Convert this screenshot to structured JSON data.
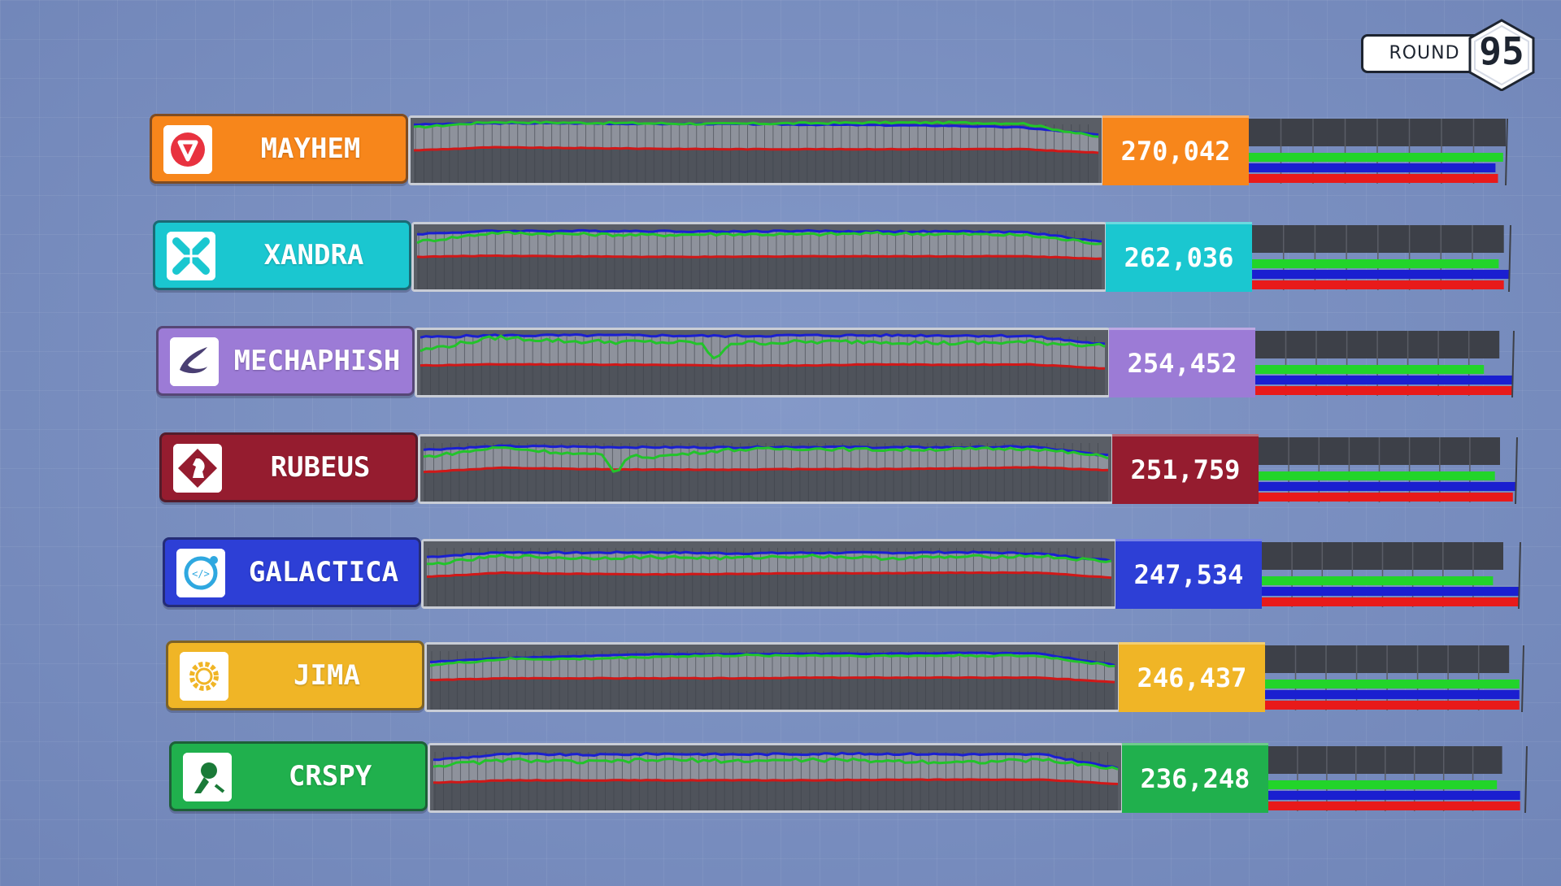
{
  "round": {
    "label": "ROUND",
    "number": "95"
  },
  "chart_data": [
    {
      "type": "line",
      "series": [
        {
          "name": "",
          "color": "#1a1fd0",
          "values": [
            0.93,
            0.95,
            0.95,
            0.94,
            0.94,
            0.93,
            0.92,
            0.91,
            0.88,
            0.76
          ]
        },
        {
          "name": "",
          "color": "#22c42a",
          "values": [
            0.88,
            0.97,
            0.96,
            0.95,
            0.94,
            0.95,
            0.96,
            0.96,
            0.95,
            0.72
          ]
        },
        {
          "name": "",
          "color": "#d01818",
          "values": [
            0.5,
            0.55,
            0.54,
            0.53,
            0.52,
            0.52,
            0.52,
            0.52,
            0.52,
            0.46
          ]
        }
      ]
    }
  ],
  "teams": [
    {
      "name": "MAYHEM",
      "score": "270,042",
      "color": "#f7861b",
      "icon": "mayhem-logo-icon",
      "trend": {
        "blue": [
          0.93,
          0.95,
          0.95,
          0.94,
          0.94,
          0.93,
          0.92,
          0.91,
          0.88,
          0.76
        ],
        "green": [
          0.88,
          0.97,
          0.96,
          0.95,
          0.94,
          0.95,
          0.96,
          0.96,
          0.95,
          0.72
        ],
        "red": [
          0.5,
          0.55,
          0.54,
          0.53,
          0.52,
          0.52,
          0.52,
          0.52,
          0.52,
          0.46
        ],
        "noise": 0.03,
        "dip": null
      },
      "bars": {
        "green": 0.99,
        "blue": 0.96,
        "red": 0.97,
        "gray": 1.0
      }
    },
    {
      "name": "XANDRA",
      "score": "262,036",
      "color": "#1ac7d0",
      "icon": "xandra-logo-icon",
      "trend": {
        "blue": [
          0.88,
          0.93,
          0.93,
          0.93,
          0.92,
          0.93,
          0.92,
          0.92,
          0.91,
          0.75
        ],
        "green": [
          0.75,
          0.9,
          0.88,
          0.86,
          0.88,
          0.87,
          0.89,
          0.88,
          0.86,
          0.72
        ],
        "red": [
          0.5,
          0.52,
          0.51,
          0.5,
          0.5,
          0.51,
          0.51,
          0.51,
          0.51,
          0.47
        ],
        "noise": 0.05,
        "dip": null
      },
      "bars": {
        "green": 0.96,
        "blue": 1.0,
        "red": 0.98,
        "gray": 0.98
      }
    },
    {
      "name": "MECHAPHISH",
      "score": "254,452",
      "color": "#9c7bd6",
      "icon": "mechaphish-logo-icon",
      "trend": {
        "blue": [
          0.92,
          0.95,
          0.95,
          0.95,
          0.94,
          0.95,
          0.95,
          0.95,
          0.94,
          0.8
        ],
        "green": [
          0.7,
          0.92,
          0.85,
          0.84,
          0.82,
          0.84,
          0.85,
          0.82,
          0.84,
          0.78
        ],
        "red": [
          0.45,
          0.47,
          0.47,
          0.46,
          0.45,
          0.45,
          0.47,
          0.46,
          0.47,
          0.4
        ],
        "noise": 0.07,
        "dip": 0.43
      },
      "bars": {
        "green": 0.89,
        "blue": 1.0,
        "red": 1.0,
        "gray": 0.95
      }
    },
    {
      "name": "RUBEUS",
      "score": "251,759",
      "color": "#951c2f",
      "icon": "rubeus-logo-icon",
      "trend": {
        "blue": [
          0.82,
          0.88,
          0.87,
          0.86,
          0.86,
          0.87,
          0.86,
          0.86,
          0.87,
          0.72
        ],
        "green": [
          0.7,
          0.86,
          0.75,
          0.7,
          0.82,
          0.84,
          0.82,
          0.83,
          0.84,
          0.7
        ],
        "red": [
          0.45,
          0.52,
          0.5,
          0.49,
          0.49,
          0.5,
          0.5,
          0.51,
          0.53,
          0.48
        ],
        "noise": 0.05,
        "dip": 0.28
      },
      "bars": {
        "green": 0.92,
        "blue": 1.0,
        "red": 0.99,
        "gray": 0.94
      }
    },
    {
      "name": "GALACTICA",
      "score": "247,534",
      "color": "#2d3fd6",
      "icon": "galactica-logo-icon",
      "trend": {
        "blue": [
          0.78,
          0.86,
          0.85,
          0.86,
          0.84,
          0.85,
          0.85,
          0.86,
          0.84,
          0.72
        ],
        "green": [
          0.65,
          0.8,
          0.76,
          0.78,
          0.76,
          0.8,
          0.76,
          0.78,
          0.8,
          0.7
        ],
        "red": [
          0.45,
          0.52,
          0.5,
          0.49,
          0.5,
          0.51,
          0.51,
          0.52,
          0.52,
          0.44
        ],
        "noise": 0.05,
        "dip": null
      },
      "bars": {
        "green": 0.9,
        "blue": 1.0,
        "red": 1.0,
        "gray": 0.94
      }
    },
    {
      "name": "JIMA",
      "score": "246,437",
      "color": "#f0b526",
      "icon": "jima-logo-icon",
      "trend": {
        "blue": [
          0.75,
          0.82,
          0.85,
          0.88,
          0.88,
          0.89,
          0.89,
          0.9,
          0.89,
          0.7
        ],
        "green": [
          0.7,
          0.8,
          0.8,
          0.84,
          0.86,
          0.86,
          0.85,
          0.86,
          0.85,
          0.68
        ],
        "red": [
          0.45,
          0.48,
          0.48,
          0.48,
          0.48,
          0.49,
          0.49,
          0.49,
          0.49,
          0.42
        ],
        "noise": 0.03,
        "dip": null
      },
      "bars": {
        "green": 0.99,
        "blue": 0.99,
        "red": 0.99,
        "gray": 0.95
      }
    },
    {
      "name": "CRSPY",
      "score": "236,248",
      "color": "#20b04d",
      "icon": "crspy-logo-icon",
      "trend": {
        "blue": [
          0.8,
          0.9,
          0.88,
          0.9,
          0.89,
          0.9,
          0.9,
          0.89,
          0.89,
          0.66
        ],
        "green": [
          0.7,
          0.8,
          0.76,
          0.8,
          0.78,
          0.8,
          0.78,
          0.76,
          0.8,
          0.65
        ],
        "red": [
          0.42,
          0.46,
          0.46,
          0.46,
          0.46,
          0.46,
          0.47,
          0.47,
          0.47,
          0.4
        ],
        "noise": 0.06,
        "dip": null
      },
      "bars": {
        "green": 0.89,
        "blue": 0.98,
        "red": 0.98,
        "gray": 0.91
      }
    }
  ]
}
